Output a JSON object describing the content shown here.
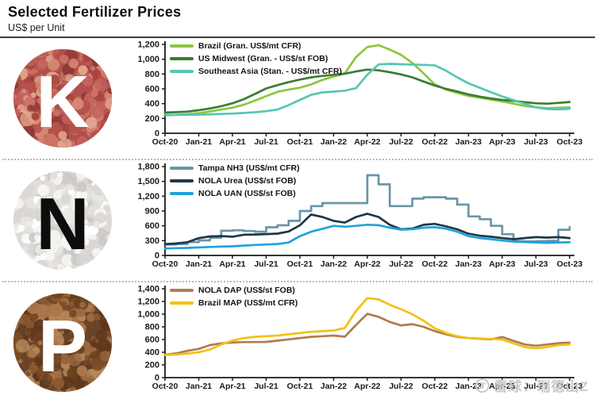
{
  "header": {
    "title": "Selected Fertilizer Prices",
    "subtitle": "US$ per Unit"
  },
  "watermark": {
    "text": "雪球：瑞德山Z",
    "color": "#c9c9c9"
  },
  "axis_color": "#1a1a1a",
  "chart_data": [
    {
      "type": "line",
      "panel_letter": "K",
      "panel_name": "potash",
      "icon": {
        "letter": "K",
        "letter_color": "#ffffff",
        "base_color": "#b0504c",
        "granule_palette": [
          "#c4625d",
          "#a84341",
          "#d88a74",
          "#b5524b",
          "#e2a58e",
          "#8e3936",
          "#cb7463"
        ]
      },
      "title": "",
      "xlabel": "",
      "ylabel": "",
      "ylim": [
        0,
        1200
      ],
      "ytick_step": 200,
      "grid": false,
      "legend_position": "top-left-inside",
      "x_start": "Oct-20",
      "x_end": "Oct-23",
      "x_frequency": "monthly",
      "tick_labels": [
        "Oct-20",
        "Jan-21",
        "Apr-21",
        "Jul-21",
        "Oct-21",
        "Jan-22",
        "Apr-22",
        "Jul-22",
        "Oct-22",
        "Jan-23",
        "Apr-23",
        "Jul-23",
        "Oct-23"
      ],
      "series": [
        {
          "name": "Brazil (Gran. US$/mt CFR)",
          "color": "#8cc63e",
          "step": false,
          "values": [
            245,
            250,
            258,
            272,
            295,
            320,
            345,
            385,
            440,
            500,
            560,
            590,
            615,
            660,
            720,
            765,
            810,
            1030,
            1165,
            1190,
            1130,
            1060,
            950,
            810,
            660,
            590,
            545,
            505,
            480,
            455,
            430,
            400,
            370,
            350,
            340,
            345,
            350
          ]
        },
        {
          "name": "US Midwest (Gran. - US$/st FOB)",
          "color": "#3a7d33",
          "step": false,
          "values": [
            280,
            285,
            292,
            312,
            335,
            365,
            405,
            460,
            530,
            605,
            650,
            690,
            725,
            755,
            775,
            790,
            805,
            835,
            860,
            850,
            825,
            795,
            755,
            700,
            645,
            600,
            565,
            525,
            495,
            470,
            450,
            438,
            420,
            405,
            400,
            410,
            422
          ]
        },
        {
          "name": "Southeast Asia (Stan. - US$/mt CFR)",
          "color": "#56c6b2",
          "step": false,
          "values": [
            248,
            249,
            250,
            252,
            256,
            260,
            266,
            274,
            284,
            298,
            320,
            380,
            450,
            520,
            552,
            562,
            575,
            610,
            790,
            930,
            938,
            932,
            928,
            924,
            918,
            845,
            755,
            675,
            615,
            555,
            498,
            448,
            398,
            350,
            328,
            322,
            330
          ]
        }
      ]
    },
    {
      "type": "line",
      "panel_letter": "N",
      "panel_name": "nitrogen",
      "icon": {
        "letter": "N",
        "letter_color": "#0d0d0d",
        "base_color": "#dcd9d6",
        "granule_palette": [
          "#f7f6f4",
          "#e9e7e4",
          "#d9d6d3",
          "#cbc8c5",
          "#ffffff",
          "#e2dfdc"
        ]
      },
      "title": "",
      "xlabel": "",
      "ylabel": "",
      "ylim": [
        0,
        1800
      ],
      "ytick_step": 300,
      "grid": false,
      "legend_position": "top-left-inside",
      "x_start": "Oct-20",
      "x_end": "Oct-23",
      "x_frequency": "monthly",
      "tick_labels": [
        "Oct-20",
        "Jan-21",
        "Apr-21",
        "Jul-21",
        "Oct-21",
        "Jan-22",
        "Apr-22",
        "Jul-22",
        "Oct-22",
        "Jan-23",
        "Apr-23",
        "Jul-23",
        "Oct-23"
      ],
      "series": [
        {
          "name": "Tampa NH3 (US$/mt CFR)",
          "color": "#6b95a8",
          "step": true,
          "values": [
            220,
            230,
            270,
            305,
            360,
            500,
            510,
            495,
            480,
            570,
            610,
            700,
            900,
            1000,
            1060,
            1060,
            1060,
            1060,
            1625,
            1440,
            1000,
            1000,
            1150,
            1180,
            1180,
            1150,
            1030,
            790,
            735,
            600,
            430,
            290,
            285,
            290,
            295,
            520,
            575
          ]
        },
        {
          "name": "NOLA Urea (US$/st FOB)",
          "color": "#203746",
          "step": false,
          "values": [
            230,
            242,
            268,
            350,
            385,
            392,
            380,
            420,
            425,
            432,
            442,
            485,
            610,
            830,
            780,
            700,
            665,
            780,
            845,
            780,
            620,
            530,
            545,
            620,
            640,
            590,
            530,
            440,
            400,
            380,
            352,
            330,
            352,
            372,
            362,
            372,
            352
          ]
        },
        {
          "name": "NOLA UAN (US$/st FOB)",
          "color": "#1fa3dc",
          "step": false,
          "values": [
            140,
            148,
            152,
            162,
            172,
            180,
            185,
            200,
            212,
            222,
            232,
            262,
            390,
            480,
            540,
            600,
            582,
            600,
            622,
            612,
            562,
            522,
            532,
            562,
            572,
            542,
            482,
            390,
            352,
            330,
            302,
            282,
            272,
            262,
            256,
            262,
            266
          ]
        }
      ]
    },
    {
      "type": "line",
      "panel_letter": "P",
      "panel_name": "phosphate",
      "icon": {
        "letter": "P",
        "letter_color": "#ffffff",
        "base_color": "#6b4326",
        "granule_palette": [
          "#9c6b3f",
          "#7c4a26",
          "#b5885a",
          "#68401f",
          "#8a5a33",
          "#5e371b",
          "#a9774a"
        ]
      },
      "title": "",
      "xlabel": "",
      "ylabel": "",
      "ylim": [
        0,
        1400
      ],
      "ytick_step": 200,
      "grid": false,
      "legend_position": "top-left-inside",
      "x_start": "Oct-20",
      "x_end": "Oct-23",
      "x_frequency": "monthly",
      "tick_labels": [
        "Oct-20",
        "Jan-21",
        "Apr-21",
        "Jul-21",
        "Oct-21",
        "Jan-22",
        "Apr-22",
        "Jul-22",
        "Oct-22",
        "Jan-23",
        "Apr-23",
        "Jul-23",
        "Oct-23"
      ],
      "series": [
        {
          "name": "NOLA DAP (US$/st FOB)",
          "color": "#b07b4e",
          "step": false,
          "values": [
            360,
            382,
            422,
            452,
            512,
            540,
            552,
            560,
            560,
            562,
            582,
            602,
            622,
            642,
            652,
            662,
            645,
            830,
            1005,
            958,
            878,
            822,
            842,
            800,
            732,
            682,
            642,
            622,
            612,
            602,
            640,
            580,
            522,
            502,
            522,
            542,
            552
          ]
        },
        {
          "name": "Brazil MAP (US$/mt CFR)",
          "color": "#f2c113",
          "step": false,
          "values": [
            358,
            364,
            380,
            400,
            442,
            522,
            582,
            622,
            642,
            652,
            662,
            682,
            702,
            722,
            732,
            742,
            782,
            1052,
            1252,
            1232,
            1148,
            1078,
            998,
            898,
            778,
            702,
            652,
            622,
            616,
            610,
            600,
            540,
            482,
            462,
            482,
            512,
            522
          ]
        }
      ]
    }
  ]
}
